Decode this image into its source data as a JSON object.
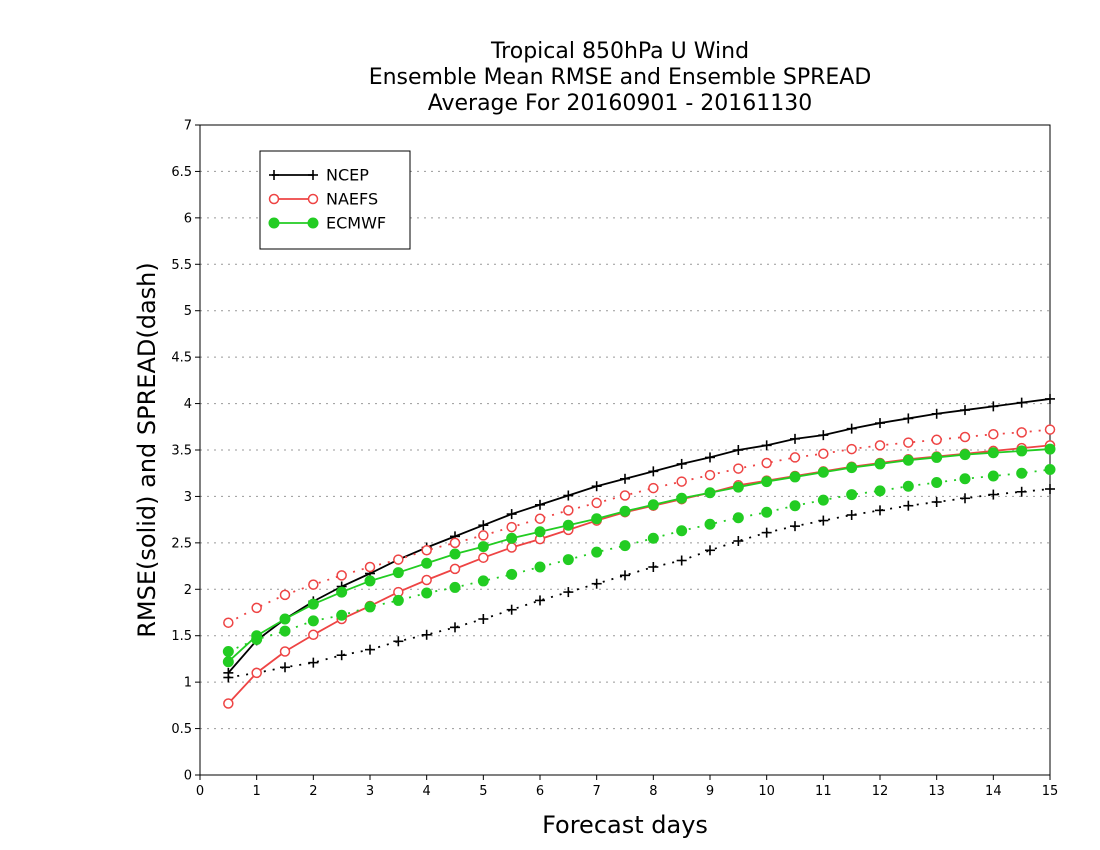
{
  "chart_data": {
    "type": "line",
    "title_lines": [
      "Tropical 850hPa U Wind",
      "Ensemble Mean RMSE and Ensemble SPREAD",
      "Average For 20160901 - 20161130"
    ],
    "xlabel": "Forecast days",
    "ylabel": "RMSE(solid) and SPREAD(dash)",
    "xlim": [
      0,
      15
    ],
    "ylim": [
      0,
      7
    ],
    "x_ticks": [
      "0",
      "1",
      "2",
      "3",
      "4",
      "5",
      "6",
      "7",
      "8",
      "9",
      "10",
      "11",
      "12",
      "13",
      "14",
      "15"
    ],
    "y_ticks": [
      "0",
      "0.5",
      "1",
      "1.5",
      "2",
      "2.5",
      "3",
      "3.5",
      "4",
      "4.5",
      "5",
      "5.5",
      "6",
      "6.5",
      "7"
    ],
    "grid": "horizontal dotted",
    "legend_position": "top-left",
    "x": [
      0.5,
      1,
      1.5,
      2,
      2.5,
      3,
      3.5,
      4,
      4.5,
      5,
      5.5,
      6,
      6.5,
      7,
      7.5,
      8,
      8.5,
      9,
      9.5,
      10,
      10.5,
      11,
      11.5,
      12,
      12.5,
      13,
      13.5,
      14,
      14.5,
      15
    ],
    "series": [
      {
        "name": "NCEP",
        "color": "#000000",
        "marker": "plus",
        "rmse": [
          1.1,
          1.45,
          1.68,
          1.87,
          2.03,
          2.17,
          2.32,
          2.45,
          2.57,
          2.69,
          2.81,
          2.91,
          3.01,
          3.11,
          3.19,
          3.27,
          3.35,
          3.42,
          3.5,
          3.55,
          3.62,
          3.66,
          3.73,
          3.79,
          3.84,
          3.89,
          3.93,
          3.97,
          4.01,
          4.05
        ],
        "spread": [
          1.05,
          1.1,
          1.16,
          1.21,
          1.29,
          1.35,
          1.44,
          1.51,
          1.59,
          1.68,
          1.78,
          1.88,
          1.97,
          2.06,
          2.15,
          2.24,
          2.31,
          2.42,
          2.52,
          2.61,
          2.68,
          2.74,
          2.8,
          2.85,
          2.9,
          2.94,
          2.98,
          3.02,
          3.05,
          3.08
        ]
      },
      {
        "name": "NAEFS",
        "color": "#ee4444",
        "marker": "circle-open",
        "rmse": [
          0.77,
          1.1,
          1.33,
          1.51,
          1.68,
          1.82,
          1.97,
          2.1,
          2.22,
          2.34,
          2.45,
          2.54,
          2.64,
          2.74,
          2.83,
          2.9,
          2.97,
          3.04,
          3.12,
          3.17,
          3.22,
          3.27,
          3.32,
          3.36,
          3.4,
          3.43,
          3.46,
          3.49,
          3.52,
          3.55
        ],
        "spread": [
          1.64,
          1.8,
          1.94,
          2.05,
          2.15,
          2.24,
          2.32,
          2.42,
          2.5,
          2.58,
          2.67,
          2.76,
          2.85,
          2.93,
          3.01,
          3.09,
          3.16,
          3.23,
          3.3,
          3.36,
          3.42,
          3.46,
          3.51,
          3.55,
          3.58,
          3.61,
          3.64,
          3.67,
          3.69,
          3.72
        ]
      },
      {
        "name": "ECMWF",
        "color": "#22cc22",
        "marker": "circle-filled",
        "rmse": [
          1.22,
          1.5,
          1.68,
          1.84,
          1.97,
          2.09,
          2.18,
          2.28,
          2.38,
          2.46,
          2.55,
          2.62,
          2.69,
          2.76,
          2.84,
          2.91,
          2.98,
          3.04,
          3.1,
          3.16,
          3.21,
          3.26,
          3.31,
          3.35,
          3.39,
          3.42,
          3.45,
          3.47,
          3.49,
          3.51
        ],
        "spread": [
          1.33,
          1.46,
          1.55,
          1.66,
          1.72,
          1.81,
          1.88,
          1.96,
          2.02,
          2.09,
          2.16,
          2.24,
          2.32,
          2.4,
          2.47,
          2.55,
          2.63,
          2.7,
          2.77,
          2.83,
          2.9,
          2.96,
          3.02,
          3.06,
          3.11,
          3.15,
          3.19,
          3.22,
          3.25,
          3.29
        ]
      }
    ]
  }
}
